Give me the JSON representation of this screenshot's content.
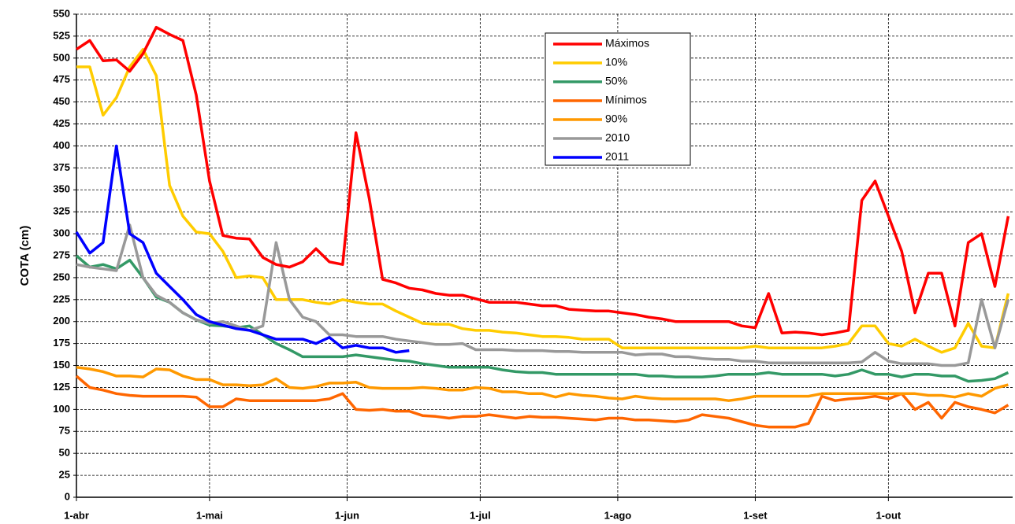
{
  "chart_data": {
    "type": "line",
    "y_label": "COTA (cm)",
    "x": [
      0,
      3,
      6,
      9,
      12,
      15,
      18,
      21,
      24,
      27,
      30,
      33,
      36,
      39,
      42,
      45,
      48,
      51,
      54,
      57,
      60,
      63,
      66,
      69,
      72,
      75,
      78,
      81,
      84,
      87,
      90,
      93,
      96,
      99,
      102,
      105,
      108,
      111,
      114,
      117,
      120,
      123,
      126,
      129,
      132,
      135,
      138,
      141,
      144,
      147,
      150,
      153,
      156,
      159,
      162,
      165,
      168,
      171,
      174,
      177,
      180,
      183,
      186,
      189,
      192,
      195,
      198,
      201,
      204,
      207,
      210
    ],
    "xlim": [
      0,
      211
    ],
    "xticks": [
      {
        "value": 0,
        "label": "1-abr"
      },
      {
        "value": 30,
        "label": "1-mai"
      },
      {
        "value": 61,
        "label": "1-jun"
      },
      {
        "value": 91,
        "label": "1-jul"
      },
      {
        "value": 122,
        "label": "1-ago"
      },
      {
        "value": 153,
        "label": "1-set"
      },
      {
        "value": 183,
        "label": "1-out"
      }
    ],
    "ylim": [
      0,
      550
    ],
    "yticks": [
      0,
      25,
      50,
      75,
      100,
      125,
      150,
      175,
      200,
      225,
      250,
      275,
      300,
      325,
      350,
      375,
      400,
      425,
      450,
      475,
      500,
      525,
      550
    ],
    "grid": true,
    "legend": "top-center",
    "series": [
      {
        "name": "Máximos",
        "color": "#ff0000",
        "values": [
          510,
          520,
          497,
          498,
          485,
          505,
          535,
          527,
          520,
          458,
          360,
          298,
          295,
          294,
          273,
          265,
          262,
          268,
          283,
          268,
          265,
          415,
          340,
          248,
          244,
          238,
          236,
          232,
          230,
          230,
          226,
          222,
          222,
          222,
          220,
          218,
          218,
          214,
          213,
          212,
          212,
          210,
          208,
          205,
          203,
          200,
          200,
          200,
          200,
          200,
          195,
          193,
          232,
          187,
          188,
          187,
          185,
          187,
          190,
          338,
          360,
          320,
          280,
          210,
          255,
          255,
          195,
          290,
          300,
          240,
          320
        ]
      },
      {
        "name": "10%",
        "color": "#ffcc00",
        "values": [
          490,
          490,
          435,
          455,
          490,
          510,
          480,
          355,
          320,
          302,
          300,
          280,
          250,
          252,
          250,
          225,
          225,
          225,
          222,
          220,
          225,
          222,
          220,
          220,
          212,
          205,
          198,
          197,
          197,
          192,
          190,
          190,
          188,
          187,
          185,
          183,
          183,
          182,
          180,
          180,
          180,
          170,
          170,
          170,
          170,
          170,
          170,
          170,
          170,
          170,
          170,
          172,
          170,
          170,
          170,
          170,
          170,
          172,
          175,
          195,
          195,
          175,
          172,
          180,
          172,
          165,
          170,
          198,
          172,
          170,
          232
        ]
      },
      {
        "name": "50%",
        "color": "#339966",
        "values": [
          275,
          262,
          265,
          260,
          270,
          250,
          228,
          222,
          210,
          202,
          196,
          195,
          193,
          195,
          185,
          175,
          168,
          160,
          160,
          160,
          160,
          162,
          160,
          158,
          156,
          155,
          152,
          150,
          148,
          148,
          148,
          148,
          145,
          143,
          142,
          142,
          140,
          140,
          140,
          140,
          140,
          140,
          140,
          138,
          138,
          137,
          137,
          137,
          138,
          140,
          140,
          140,
          142,
          140,
          140,
          140,
          140,
          138,
          140,
          145,
          140,
          140,
          137,
          140,
          140,
          138,
          138,
          132,
          133,
          135,
          142
        ]
      },
      {
        "name": "Mínimos",
        "color": "#ff6600",
        "values": [
          138,
          125,
          122,
          118,
          116,
          115,
          115,
          115,
          115,
          114,
          103,
          103,
          112,
          110,
          110,
          110,
          110,
          110,
          110,
          112,
          118,
          100,
          99,
          100,
          98,
          98,
          93,
          92,
          90,
          92,
          92,
          94,
          92,
          90,
          92,
          91,
          91,
          90,
          89,
          88,
          90,
          90,
          88,
          88,
          87,
          86,
          88,
          94,
          92,
          90,
          86,
          82,
          80,
          80,
          80,
          84,
          115,
          110,
          112,
          113,
          115,
          112,
          118,
          100,
          108,
          90,
          108,
          103,
          100,
          96,
          105
        ]
      },
      {
        "name": "90%",
        "color": "#ff9900",
        "values": [
          148,
          146,
          143,
          138,
          138,
          137,
          146,
          145,
          138,
          134,
          134,
          128,
          128,
          127,
          128,
          135,
          125,
          124,
          126,
          130,
          130,
          131,
          125,
          124,
          124,
          124,
          125,
          124,
          122,
          122,
          125,
          124,
          120,
          120,
          118,
          118,
          114,
          118,
          116,
          115,
          113,
          112,
          115,
          113,
          112,
          112,
          112,
          112,
          112,
          110,
          112,
          115,
          115,
          115,
          115,
          115,
          118,
          118,
          118,
          118,
          118,
          118,
          118,
          118,
          116,
          116,
          114,
          118,
          115,
          124,
          128
        ]
      },
      {
        "name": "2010",
        "color": "#999999",
        "values": [
          265,
          262,
          260,
          258,
          310,
          250,
          230,
          222,
          210,
          202,
          198,
          200,
          195,
          190,
          195,
          290,
          225,
          205,
          200,
          185,
          185,
          183,
          183,
          183,
          180,
          178,
          176,
          174,
          174,
          175,
          168,
          168,
          168,
          167,
          167,
          167,
          166,
          166,
          165,
          165,
          165,
          165,
          162,
          163,
          163,
          160,
          160,
          158,
          157,
          157,
          155,
          155,
          153,
          153,
          153,
          153,
          153,
          153,
          153,
          154,
          165,
          155,
          152,
          152,
          152,
          150,
          150,
          153,
          225,
          170,
          225
        ]
      },
      {
        "name": "2011",
        "color": "#0000ff",
        "values": [
          302,
          278,
          290,
          400,
          300,
          290,
          255,
          240,
          225,
          208,
          200,
          196,
          192,
          190,
          185,
          180,
          180,
          180,
          175,
          182,
          170,
          173,
          170,
          170,
          165,
          167,
          null,
          null,
          null,
          null,
          null,
          null,
          null,
          null,
          null,
          null,
          null,
          null,
          null,
          null,
          null,
          null,
          null,
          null,
          null,
          null,
          null,
          null,
          null,
          null,
          null,
          null,
          null,
          null,
          null,
          null,
          null,
          null,
          null,
          null,
          null,
          null,
          null,
          null,
          null,
          null,
          null,
          null,
          null,
          null,
          null
        ]
      }
    ]
  }
}
